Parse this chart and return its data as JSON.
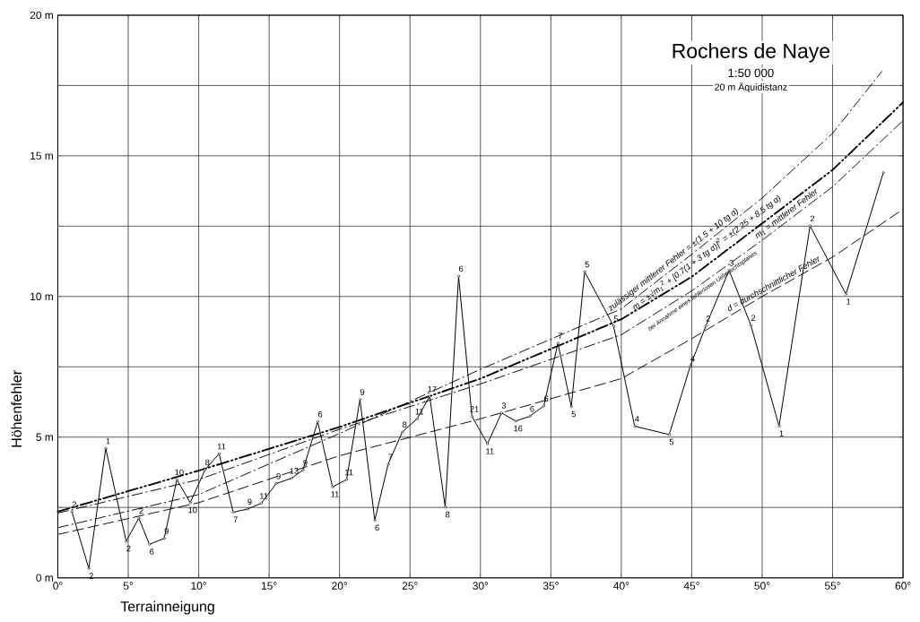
{
  "chart_data": {
    "type": "line",
    "title": "Rochers de Naye",
    "subtitle": "1:50 000",
    "xlabel": "Terrainneigung",
    "ylabel": "Höhenfehler",
    "xlim": [
      0,
      60
    ],
    "ylim": [
      0,
      20
    ],
    "xticks": [
      {
        "value": 0,
        "label": "0°"
      },
      {
        "value": 5,
        "label": "5°"
      },
      {
        "value": 10,
        "label": "10°"
      },
      {
        "value": 15,
        "label": "15°"
      },
      {
        "value": 20,
        "label": "20°"
      },
      {
        "value": 25,
        "label": "25°"
      },
      {
        "value": 30,
        "label": "30°"
      },
      {
        "value": 35,
        "label": "35°"
      },
      {
        "value": 40,
        "label": "40°"
      },
      {
        "value": 45,
        "label": "45°"
      },
      {
        "value": 50,
        "label": "50°"
      },
      {
        "value": 55,
        "label": "55°"
      },
      {
        "value": 60,
        "label": "60°"
      }
    ],
    "yticks": [
      {
        "value": 0,
        "label": "0 m"
      },
      {
        "value": 2.5,
        "label": null
      },
      {
        "value": 5,
        "label": "5 m"
      },
      {
        "value": 7.5,
        "label": null
      },
      {
        "value": 10,
        "label": "10 m"
      },
      {
        "value": 12.5,
        "label": null
      },
      {
        "value": 15,
        "label": "15 m"
      },
      {
        "value": 17.5,
        "label": null
      },
      {
        "value": 20,
        "label": "20 m"
      }
    ],
    "grid": true,
    "legend": false,
    "series": [
      {
        "color": "#000000",
        "marker": "circle",
        "line_style": "solid",
        "x": [
          1.0,
          2.2,
          3.4,
          4.85,
          5.75,
          6.5,
          7.55,
          8.45,
          9.4,
          10.45,
          11.45,
          12.45,
          13.45,
          14.45,
          15.5,
          16.6,
          17.4,
          18.45,
          19.5,
          20.5,
          21.45,
          22.5,
          23.45,
          24.45,
          25.5,
          26.4,
          27.5,
          28.45,
          29.4,
          30.5,
          31.5,
          32.5,
          33.5,
          34.5,
          35.5,
          36.45,
          37.4,
          39.45,
          40.95,
          43.4,
          44.9,
          46.0,
          47.65,
          49.2,
          51.2,
          53.4,
          55.95,
          58.6
        ],
        "values": [
          2.35,
          0.33,
          4.6,
          1.3,
          2.12,
          1.19,
          1.4,
          3.49,
          2.67,
          3.84,
          4.41,
          2.33,
          2.44,
          2.65,
          3.35,
          3.54,
          3.83,
          5.55,
          3.23,
          3.49,
          6.34,
          2.04,
          4.04,
          5.18,
          5.65,
          6.45,
          2.51,
          10.72,
          5.74,
          4.76,
          5.86,
          5.57,
          5.74,
          6.11,
          8.34,
          6.08,
          10.88,
          8.95,
          5.39,
          5.09,
          7.53,
          8.95,
          10.93,
          8.98,
          5.39,
          12.51,
          10.08,
          14.4
        ]
      },
      {
        "name": "zulässiger mittlerer Fehler = ±(1.5 + 10 tg α)",
        "color": "#000000",
        "marker": "none",
        "line_style": "dashdot",
        "x": [
          0,
          10,
          20,
          30,
          40,
          45,
          50,
          55,
          58.5
        ],
        "values": [
          1.78,
          2.96,
          5.13,
          7.41,
          9.56,
          11.5,
          13.5,
          15.8,
          18.0
        ]
      },
      {
        "name": "m = ±√m$_{1}$$^{2}$ + [0.7(1 + 3 tg α)]$^{2}$ = ±(2.25 + 8.5 tg α)",
        "color": "#000000",
        "marker": "none",
        "line_style": "dashdotdot",
        "x": [
          0,
          10,
          20,
          30,
          40,
          45,
          50,
          55,
          60
        ],
        "values": [
          2.35,
          3.81,
          5.36,
          7.08,
          9.19,
          10.7,
          12.6,
          14.5,
          16.9
        ]
      },
      {
        "name": "m$_{1}$ = mittlerer Fehler",
        "color": "#000000",
        "marker": "none",
        "line_style": "dashdot",
        "x": [
          0,
          10,
          20,
          30,
          40,
          45,
          50,
          55,
          60
        ],
        "values": [
          2.3,
          3.49,
          5.28,
          6.89,
          8.64,
          10.2,
          12.0,
          13.9,
          16.25
        ]
      },
      {
        "name": "d = durchschnittlicher Fehler",
        "color": "#000000",
        "marker": "none",
        "line_style": "dashed",
        "x": [
          0,
          10,
          20,
          30,
          40,
          45,
          50,
          55,
          60
        ],
        "values": [
          1.54,
          2.67,
          4.34,
          5.65,
          7.08,
          8.5,
          10.0,
          11.4,
          13.1
        ]
      }
    ],
    "annotations": [
      "20 m Äquidistanz",
      "bei Annahme eines fehlerlosen Uebersichtsplanes",
      {
        "text": "2",
        "x": 1.0,
        "y": 2.35
      },
      {
        "text": "2",
        "x": 2.2,
        "y": 0.33
      },
      {
        "text": "1",
        "x": 3.4,
        "y": 4.6
      },
      {
        "text": "2",
        "x": 4.85,
        "y": 1.3
      },
      {
        "text": "2",
        "x": 5.75,
        "y": 2.12
      },
      {
        "text": "6",
        "x": 6.5,
        "y": 1.19
      },
      {
        "text": "9",
        "x": 7.55,
        "y": 1.4
      },
      {
        "text": "10",
        "x": 8.45,
        "y": 3.49
      },
      {
        "text": "10",
        "x": 9.4,
        "y": 2.67
      },
      {
        "text": "8",
        "x": 10.45,
        "y": 3.84
      },
      {
        "text": "11",
        "x": 11.45,
        "y": 4.41
      },
      {
        "text": "7",
        "x": 12.45,
        "y": 2.33
      },
      {
        "text": "9",
        "x": 13.45,
        "y": 2.44
      },
      {
        "text": "11",
        "x": 14.45,
        "y": 2.65
      },
      {
        "text": "9",
        "x": 15.5,
        "y": 3.35
      },
      {
        "text": "13",
        "x": 16.6,
        "y": 3.54
      },
      {
        "text": "9",
        "x": 17.4,
        "y": 3.83
      },
      {
        "text": "6",
        "x": 18.45,
        "y": 5.55
      },
      {
        "text": "11",
        "x": 19.5,
        "y": 3.23
      },
      {
        "text": "11",
        "x": 20.5,
        "y": 3.49
      },
      {
        "text": "9",
        "x": 21.45,
        "y": 6.34
      },
      {
        "text": "6",
        "x": 22.5,
        "y": 2.04
      },
      {
        "text": "7",
        "x": 23.45,
        "y": 4.04
      },
      {
        "text": "8",
        "x": 24.45,
        "y": 5.18
      },
      {
        "text": "11",
        "x": 25.5,
        "y": 5.65
      },
      {
        "text": "17",
        "x": 26.4,
        "y": 6.45
      },
      {
        "text": "8",
        "x": 27.5,
        "y": 2.51
      },
      {
        "text": "6",
        "x": 28.45,
        "y": 10.72
      },
      {
        "text": "21",
        "x": 29.4,
        "y": 5.74
      },
      {
        "text": "11",
        "x": 30.5,
        "y": 4.76
      },
      {
        "text": "3",
        "x": 31.5,
        "y": 5.86
      },
      {
        "text": "16",
        "x": 32.5,
        "y": 5.57
      },
      {
        "text": "6",
        "x": 33.5,
        "y": 5.74
      },
      {
        "text": "6",
        "x": 34.5,
        "y": 6.11
      },
      {
        "text": "7",
        "x": 35.5,
        "y": 8.34
      },
      {
        "text": "5",
        "x": 36.45,
        "y": 6.08
      },
      {
        "text": "5",
        "x": 37.4,
        "y": 10.88
      },
      {
        "text": "5",
        "x": 39.45,
        "y": 8.95
      },
      {
        "text": "4",
        "x": 40.95,
        "y": 5.39
      },
      {
        "text": "5",
        "x": 43.4,
        "y": 5.09
      },
      {
        "text": "4",
        "x": 44.9,
        "y": 7.53
      },
      {
        "text": "2",
        "x": 46.0,
        "y": 8.95
      },
      {
        "text": "3",
        "x": 47.65,
        "y": 10.93
      },
      {
        "text": "2",
        "x": 49.2,
        "y": 8.98
      },
      {
        "text": "1",
        "x": 51.2,
        "y": 5.39
      },
      {
        "text": "2",
        "x": 53.4,
        "y": 12.51
      },
      {
        "text": "1",
        "x": 55.95,
        "y": 10.08
      }
    ]
  }
}
